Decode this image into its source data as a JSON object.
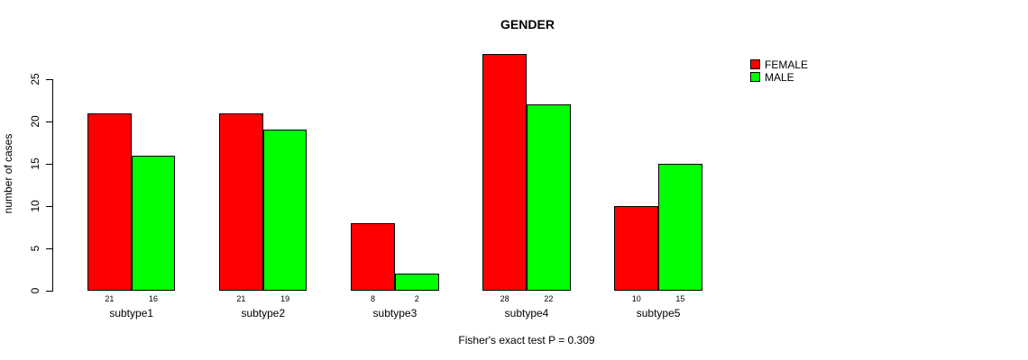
{
  "chart_data": {
    "type": "bar",
    "title": "GENDER",
    "ylabel": "number of cases",
    "xlabel": "",
    "categories": [
      "subtype1",
      "subtype2",
      "subtype3",
      "subtype4",
      "subtype5"
    ],
    "series": [
      {
        "name": "FEMALE",
        "color": "#FF0000",
        "values": [
          21,
          21,
          8,
          28,
          10
        ]
      },
      {
        "name": "MALE",
        "color": "#00FF00",
        "values": [
          16,
          19,
          2,
          22,
          15
        ]
      }
    ],
    "value_labels": [
      [
        "21",
        "16"
      ],
      [
        "21",
        "19"
      ],
      [
        "8",
        "2"
      ],
      [
        "28",
        "22"
      ],
      [
        "10",
        "15"
      ]
    ],
    "yticks": [
      "0",
      "5",
      "10",
      "15",
      "20",
      "25"
    ],
    "ylim": [
      0,
      28
    ],
    "grid": false,
    "legend_position": "top-right",
    "annotation": "Fisher's exact test P = 0.309"
  },
  "colors": {
    "female": "#FF0000",
    "male": "#00FF00",
    "axis": "#000000",
    "background": "#FFFFFF"
  }
}
